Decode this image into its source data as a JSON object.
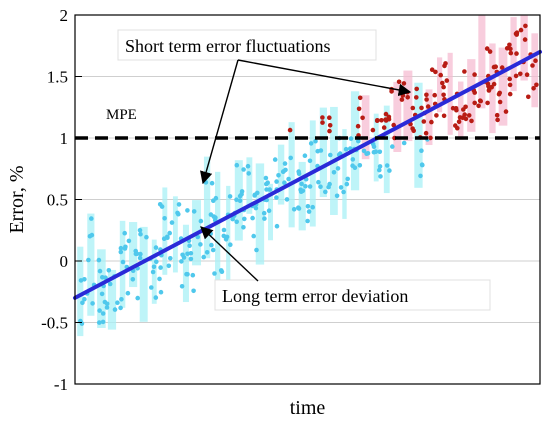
{
  "chart_data": {
    "type": "scatter",
    "xlabel": "time",
    "ylabel": "Error, %",
    "ylim": [
      -1,
      2
    ],
    "yticks": [
      -1,
      -0.5,
      0,
      0.5,
      1,
      1.5,
      2
    ],
    "ytick_labels": [
      "-1",
      "-0.5",
      "0",
      "0.5",
      "1",
      "1.5",
      "2"
    ],
    "grid": "horizontal",
    "threshold": {
      "value": 1,
      "label": "MPE",
      "style": "dashed",
      "color": "#000000"
    },
    "trend": {
      "start": -0.3,
      "end": 1.7,
      "color": "#2a2ad8"
    },
    "points_below_color": "#4fc8ec",
    "points_below_halo": "#a8f0f6",
    "points_above_color": "#b81c14",
    "points_above_halo": "#f6bcd2",
    "annotations": [
      {
        "id": "short",
        "text": "Short term error fluctuations"
      },
      {
        "id": "long",
        "text": "Long term error deviation"
      }
    ]
  }
}
